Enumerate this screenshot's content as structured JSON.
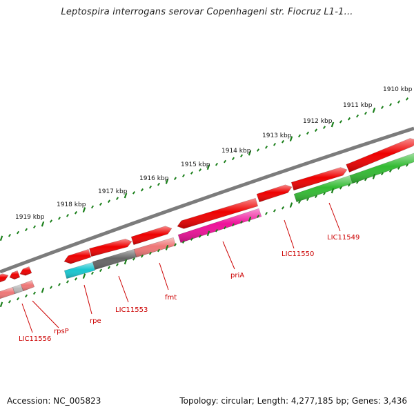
{
  "title": "Leptospira interrogans serovar Copenhageni str. Fiocruz L1-1...",
  "footer": {
    "accession": "Accession: NC_005823",
    "summary": "Topology: circular; Length: 4,277,185 bp; Genes: 3,436"
  },
  "colors": {
    "backbone": "#808080",
    "tick": "#1a7f1a",
    "label": "#cc0000",
    "gene_default": "#ee0000"
  },
  "ticks": [
    "1919 kbp",
    "1918 kbp",
    "1917 kbp",
    "1916 kbp",
    "1915 kbp",
    "1914 kbp",
    "1913 kbp",
    "1912 kbp",
    "1911 kbp",
    "1910 kbp"
  ],
  "gene_labels": [
    "LIC11556",
    "rpsP",
    "rpe",
    "LIC11553",
    "fmt",
    "priA",
    "LIC11550",
    "LIC11549"
  ]
}
